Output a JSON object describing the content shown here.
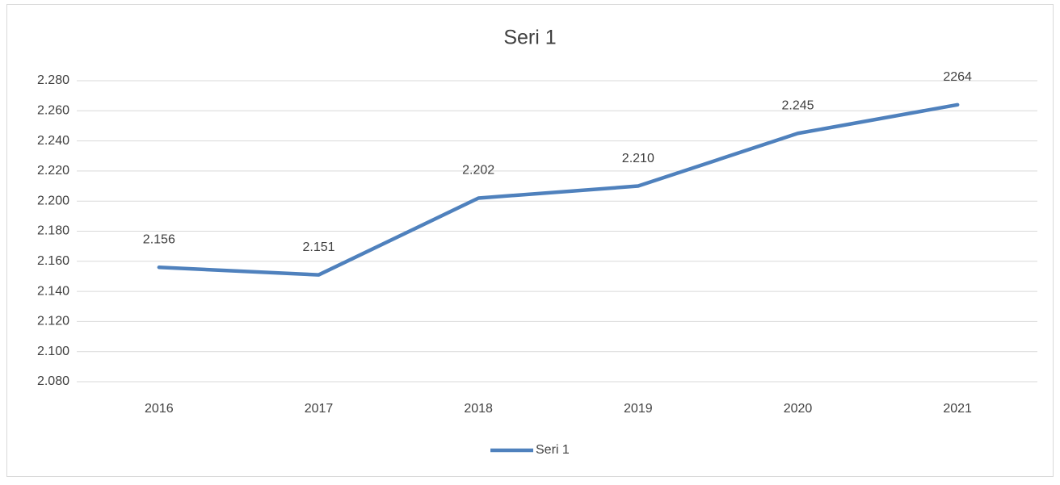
{
  "chart_data": {
    "type": "line",
    "title": "Seri 1",
    "categories": [
      "2016",
      "2017",
      "2018",
      "2019",
      "2020",
      "2021"
    ],
    "series": [
      {
        "name": "Seri 1",
        "color": "#4f81bd",
        "values": [
          2156,
          2151,
          2202,
          2210,
          2245,
          2264
        ],
        "value_labels": [
          "2.156",
          "2.151",
          "2.202",
          "2.210",
          "2.245",
          "2264"
        ]
      }
    ],
    "ylim": [
      2080,
      2280
    ],
    "yticks": [
      {
        "value": 2080,
        "label": "2.080"
      },
      {
        "value": 2100,
        "label": "2.100"
      },
      {
        "value": 2120,
        "label": "2.120"
      },
      {
        "value": 2140,
        "label": "2.140"
      },
      {
        "value": 2160,
        "label": "2.160"
      },
      {
        "value": 2180,
        "label": "2.180"
      },
      {
        "value": 2200,
        "label": "2.200"
      },
      {
        "value": 2220,
        "label": "2.220"
      },
      {
        "value": 2240,
        "label": "2.240"
      },
      {
        "value": 2260,
        "label": "2.260"
      },
      {
        "value": 2280,
        "label": "2.280"
      }
    ],
    "grid": true,
    "legend": "bottom"
  }
}
